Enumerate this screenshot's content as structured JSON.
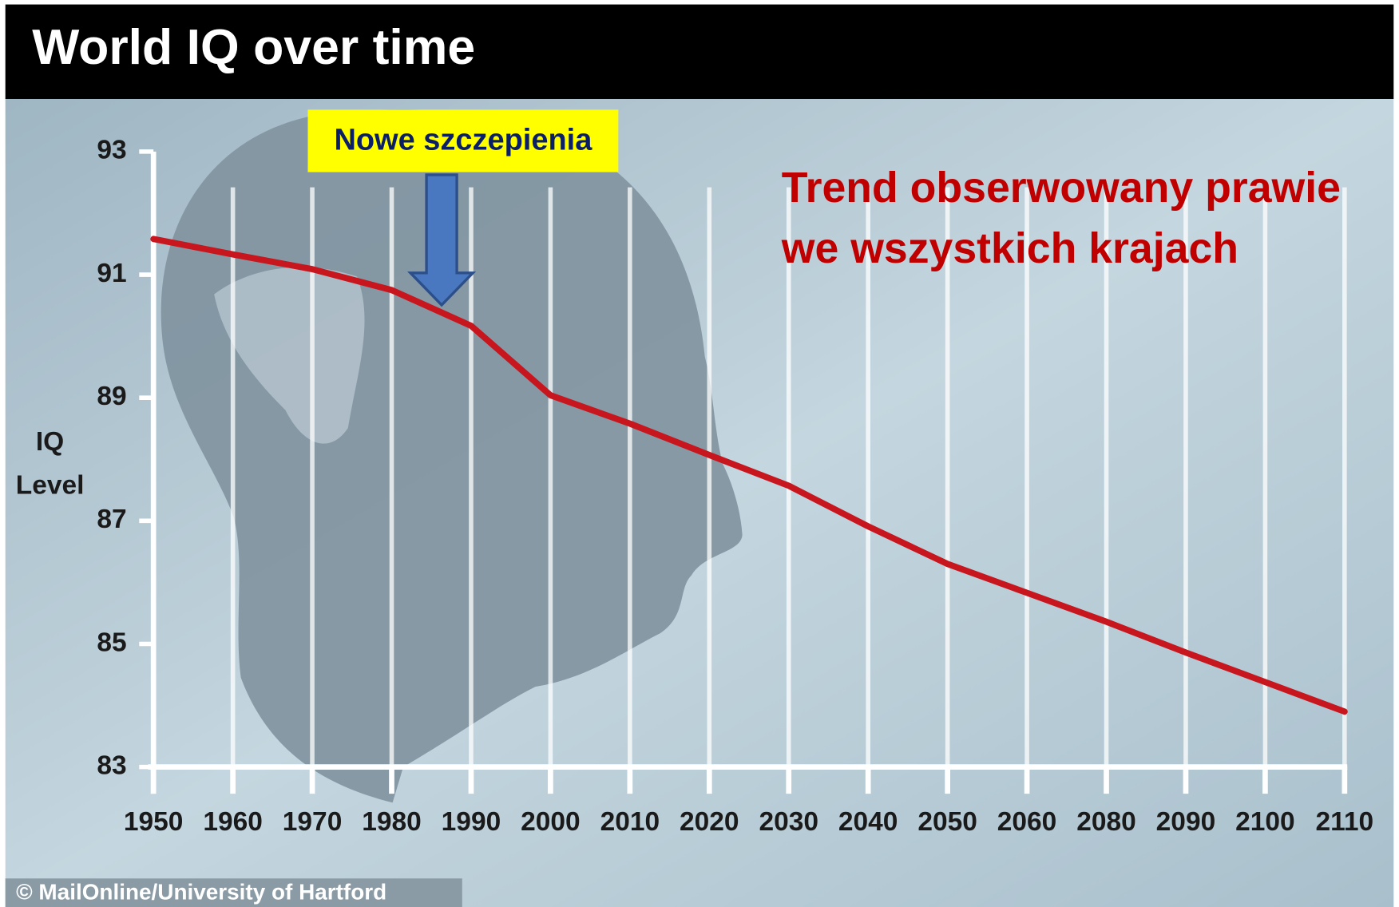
{
  "chart_data": {
    "type": "line",
    "title": "World IQ over time",
    "y_label_lines": [
      "IQ",
      "Level"
    ],
    "categories": [
      "1950",
      "1960",
      "1970",
      "1980",
      "1990",
      "2000",
      "2010",
      "2020",
      "2030",
      "2040",
      "2050",
      "2060",
      "2080",
      "2090",
      "2100",
      "2110"
    ],
    "series": [
      {
        "name": "World IQ",
        "color": "#c8161e",
        "values": [
          91.58,
          91.33,
          91.09,
          90.75,
          90.17,
          89.04,
          88.58,
          88.07,
          87.57,
          86.91,
          86.3,
          85.83,
          85.36,
          84.86,
          84.38,
          83.9
        ]
      }
    ],
    "ylim": [
      83,
      93
    ],
    "yticks": [
      83,
      85,
      87,
      89,
      91,
      93
    ],
    "grid": true,
    "arrow_annotation": "Nowe szczepienia",
    "trend_annotation_lines": [
      "Trend obserwowany prawie",
      "we wszystkich krajach"
    ],
    "credit": "© MailOnline/University of Hartford"
  }
}
